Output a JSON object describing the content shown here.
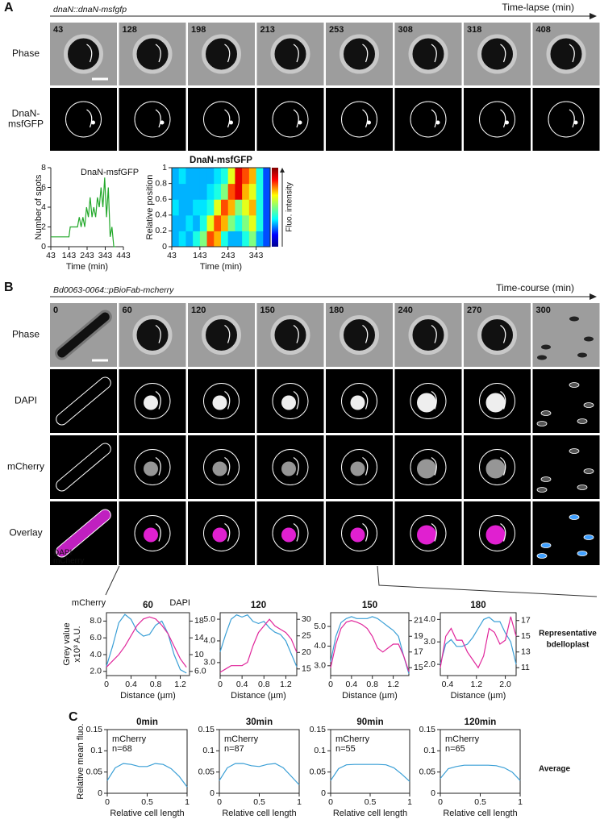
{
  "panel_a": {
    "label": "A",
    "strain": "dnaN::dnaN-msfgfp",
    "axis_label": "Time-lapse (min)",
    "times": [
      "43",
      "128",
      "198",
      "213",
      "253",
      "308",
      "318",
      "408"
    ],
    "rows": [
      [
        "Phase"
      ],
      [
        "DnaN-",
        "msfGFP"
      ]
    ]
  },
  "panel_b": {
    "label": "B",
    "strain": "Bd0063-0064::pBioFab-mcherry",
    "axis_label": "Time-course (min)",
    "times": [
      "0",
      "60",
      "120",
      "150",
      "180",
      "240",
      "270",
      "300"
    ],
    "rows": [
      [
        "Phase"
      ],
      [
        "DAPI"
      ],
      [
        "mCherry"
      ],
      [
        "Overlay"
      ]
    ],
    "overlay_legend": [
      "DAPI",
      "mCherry"
    ],
    "side_label": [
      "Representative",
      "bdelloplast"
    ]
  },
  "panel_c": {
    "label": "C",
    "side_label": "Average"
  },
  "chart_data": [
    {
      "type": "line",
      "xlabel": "Time (min)",
      "ylabel": "Number of spots",
      "x": [
        43,
        60,
        80,
        100,
        120,
        143,
        150,
        170,
        190,
        200,
        210,
        220,
        230,
        240,
        250,
        260,
        270,
        280,
        290,
        300,
        310,
        320,
        330,
        340,
        350,
        360,
        370,
        380,
        390,
        400
      ],
      "series": [
        {
          "name": "DnaN-msfGFP",
          "color": "#22a82a",
          "values": [
            1,
            1,
            1,
            1,
            1,
            1,
            2,
            2,
            2,
            3,
            2,
            3,
            2,
            4,
            3,
            5,
            3,
            4,
            3,
            5,
            4,
            6,
            4,
            7,
            3,
            6,
            1,
            2,
            0,
            0
          ]
        }
      ],
      "xlim": [
        43,
        443
      ],
      "xticks": [
        43,
        143,
        243,
        343,
        443
      ],
      "ylim": [
        0,
        8
      ],
      "yticks": [
        0,
        2,
        4,
        6,
        8
      ]
    },
    {
      "type": "heatmap",
      "title": "DnaN-msfGFP",
      "xlabel": "Time (min)",
      "ylabel": "Relative position",
      "colorbar_label": "Fluo. intensity",
      "xlim": [
        43,
        393
      ],
      "xticks": [
        43,
        143,
        243,
        343
      ],
      "ylim": [
        0,
        1
      ],
      "yticks": [
        0,
        0.2,
        0.4,
        0.6,
        0.8,
        1
      ],
      "zlim": [
        0,
        1
      ],
      "values": [
        [
          0.3,
          0.35,
          0.3,
          0.4,
          0.5,
          0.8,
          0.7,
          0.4,
          0.3,
          0.3,
          0.4,
          0.5,
          0.3,
          0.2
        ],
        [
          0.3,
          0.3,
          0.35,
          0.3,
          0.4,
          0.6,
          0.8,
          0.7,
          0.5,
          0.4,
          0.5,
          0.6,
          0.4,
          0.2
        ],
        [
          0.35,
          0.3,
          0.3,
          0.35,
          0.35,
          0.4,
          0.6,
          0.8,
          0.7,
          0.5,
          0.6,
          0.7,
          0.4,
          0.2
        ],
        [
          0.3,
          0.3,
          0.3,
          0.3,
          0.3,
          0.35,
          0.4,
          0.5,
          0.8,
          0.9,
          0.7,
          0.6,
          0.4,
          0.2
        ],
        [
          0.3,
          0.35,
          0.3,
          0.3,
          0.3,
          0.3,
          0.35,
          0.4,
          0.6,
          0.9,
          0.8,
          0.7,
          0.4,
          0.2
        ]
      ]
    },
    {
      "type": "line",
      "title": "60",
      "xlabel": "Distance (µm)",
      "ylabel": [
        "Grey value",
        "x10³ A.U."
      ],
      "x": [
        0,
        0.1,
        0.2,
        0.3,
        0.4,
        0.5,
        0.6,
        0.7,
        0.8,
        0.9,
        1.0,
        1.1,
        1.2,
        1.3
      ],
      "series": [
        {
          "name": "mCherry",
          "color": "#3a9fd6",
          "values": [
            2.6,
            5,
            7.8,
            8.8,
            8.2,
            6.8,
            6.2,
            6.4,
            7.5,
            8,
            6.5,
            4,
            2.2,
            1.8
          ]
        },
        {
          "name": "DAPI",
          "color": "#e0269b",
          "axis": "y2",
          "values": [
            7,
            8.5,
            10,
            12,
            14.5,
            17,
            18.5,
            19,
            18.5,
            17,
            15,
            12,
            9,
            7
          ]
        }
      ],
      "xlim": [
        0,
        1.35
      ],
      "xticks": [
        0,
        0.4,
        0.8,
        1.2
      ],
      "ylim": [
        1.5,
        9
      ],
      "yticks": [
        {
          "value": 2,
          "label": "2.0"
        },
        {
          "value": 4,
          "label": "4.0"
        },
        {
          "value": 6,
          "label": "6.0"
        },
        {
          "value": 8,
          "label": "8.0"
        }
      ],
      "y2lim": [
        5,
        20
      ],
      "y2ticks": [
        {
          "value": 6,
          "label": "6.0"
        },
        10,
        14,
        18
      ]
    },
    {
      "type": "line",
      "title": "120",
      "xlabel": "Distance (µm)",
      "x": [
        0,
        0.1,
        0.2,
        0.3,
        0.4,
        0.5,
        0.6,
        0.7,
        0.8,
        0.9,
        1.0,
        1.1,
        1.2,
        1.3,
        1.4
      ],
      "series": [
        {
          "color": "#3a9fd6",
          "values": [
            3.5,
            4.3,
            5.0,
            5.2,
            5.1,
            5.2,
            4.9,
            4.8,
            4.9,
            4.6,
            4.4,
            4.3,
            4.0,
            3.4,
            2.8
          ]
        },
        {
          "color": "#e0269b",
          "axis": "y2",
          "values": [
            14,
            15,
            16,
            16,
            16,
            17,
            22,
            26,
            28,
            30,
            28,
            27,
            26,
            24,
            20
          ]
        }
      ],
      "xlim": [
        0,
        1.4
      ],
      "xticks": [
        0,
        0.4,
        0.8,
        1.2
      ],
      "ylim": [
        2.4,
        5.3
      ],
      "yticks": [
        {
          "value": 3,
          "label": "3.0"
        },
        {
          "value": 4,
          "label": "4.0"
        },
        {
          "value": 5,
          "label": "5.0"
        }
      ],
      "y2lim": [
        13,
        32
      ],
      "y2ticks": [
        15,
        20,
        25,
        30
      ]
    },
    {
      "type": "line",
      "title": "150",
      "xlabel": "Distance (µm)",
      "x": [
        0,
        0.1,
        0.2,
        0.3,
        0.4,
        0.5,
        0.6,
        0.7,
        0.8,
        0.9,
        1.0,
        1.1,
        1.2,
        1.3,
        1.4,
        1.5
      ],
      "series": [
        {
          "color": "#3a9fd6",
          "values": [
            3.2,
            4.5,
            5.2,
            5.4,
            5.5,
            5.4,
            5.4,
            5.4,
            5.5,
            5.4,
            5.2,
            5.0,
            4.8,
            4.5,
            3.5,
            2.6
          ]
        },
        {
          "color": "#e0269b",
          "axis": "y2",
          "values": [
            15,
            18,
            20,
            20.8,
            21,
            20.8,
            20.5,
            20,
            19,
            17.5,
            17,
            17.5,
            18,
            18,
            16.5,
            14.5
          ]
        }
      ],
      "xlim": [
        0,
        1.5
      ],
      "xticks": [
        0,
        0.4,
        0.8,
        1.2
      ],
      "ylim": [
        2.5,
        5.7
      ],
      "yticks": [
        {
          "value": 3,
          "label": "3.0"
        },
        {
          "value": 4,
          "label": "4.0"
        },
        {
          "value": 5,
          "label": "5.0"
        }
      ],
      "y2lim": [
        14,
        22
      ],
      "y2ticks": [
        15,
        17,
        19,
        21
      ]
    },
    {
      "type": "line",
      "title": "180",
      "xlabel": "Distance (µm)",
      "x": [
        0.2,
        0.35,
        0.5,
        0.65,
        0.8,
        0.95,
        1.1,
        1.25,
        1.4,
        1.55,
        1.7,
        1.85,
        2.0,
        2.15,
        2.3
      ],
      "series": [
        {
          "color": "#3a9fd6",
          "values": [
            2.0,
            2.9,
            3.1,
            2.8,
            2.8,
            2.9,
            3.2,
            3.6,
            4.0,
            4.1,
            3.9,
            3.9,
            3.4,
            3.0,
            2.0
          ]
        },
        {
          "color": "#e0269b",
          "axis": "y2",
          "values": [
            11,
            15,
            16,
            14.5,
            14.5,
            13,
            12,
            11,
            12.5,
            16,
            15.5,
            14,
            14.5,
            17.5,
            15
          ]
        }
      ],
      "xlim": [
        0.2,
        2.3
      ],
      "xticks": [
        0.4,
        1.2,
        {
          "value": 2,
          "label": "2.0"
        }
      ],
      "ylim": [
        1.5,
        4.3
      ],
      "yticks": [
        {
          "value": 2,
          "label": "2.0"
        },
        {
          "value": 3,
          "label": "3.0"
        },
        {
          "value": 4,
          "label": "4.0"
        }
      ],
      "y2lim": [
        10,
        18
      ],
      "y2ticks": [
        11,
        13,
        15,
        17
      ]
    },
    {
      "type": "line",
      "title": "0min",
      "xlabel": "Relative cell length",
      "ylabel": "Relative mean fluo.",
      "annotation": "n=68",
      "x": [
        0,
        0.1,
        0.2,
        0.3,
        0.4,
        0.5,
        0.6,
        0.7,
        0.8,
        0.9,
        1
      ],
      "series": [
        {
          "name": "mCherry",
          "color": "#3a9fd6",
          "values": [
            0.03,
            0.06,
            0.07,
            0.068,
            0.063,
            0.063,
            0.07,
            0.068,
            0.058,
            0.04,
            0.015
          ]
        }
      ],
      "xlim": [
        0,
        1
      ],
      "xticks": [
        0,
        0.5,
        1
      ],
      "ylim": [
        0,
        0.15
      ],
      "yticks": [
        0,
        0.05,
        0.1,
        0.15
      ]
    },
    {
      "type": "line",
      "title": "30min",
      "xlabel": "Relative cell length",
      "annotation": "n=87",
      "x": [
        0,
        0.1,
        0.2,
        0.3,
        0.4,
        0.5,
        0.6,
        0.7,
        0.8,
        0.9,
        1
      ],
      "series": [
        {
          "name": "mCherry",
          "color": "#3a9fd6",
          "values": [
            0.03,
            0.06,
            0.07,
            0.07,
            0.065,
            0.063,
            0.068,
            0.07,
            0.06,
            0.04,
            0.02
          ]
        }
      ],
      "xlim": [
        0,
        1
      ],
      "xticks": [
        0,
        0.5,
        1
      ],
      "ylim": [
        0,
        0.15
      ],
      "yticks": [
        0,
        0.05,
        0.1,
        0.15
      ]
    },
    {
      "type": "line",
      "title": "90min",
      "xlabel": "Relative cell length",
      "annotation": "n=55",
      "x": [
        0,
        0.1,
        0.2,
        0.3,
        0.4,
        0.5,
        0.6,
        0.7,
        0.8,
        0.9,
        1
      ],
      "series": [
        {
          "name": "mCherry",
          "color": "#3a9fd6",
          "values": [
            0.03,
            0.058,
            0.067,
            0.068,
            0.068,
            0.068,
            0.068,
            0.067,
            0.06,
            0.045,
            0.028
          ]
        }
      ],
      "xlim": [
        0,
        1
      ],
      "xticks": [
        0,
        0.5,
        1
      ],
      "ylim": [
        0,
        0.15
      ],
      "yticks": [
        0,
        0.05,
        0.1,
        0.15
      ]
    },
    {
      "type": "line",
      "title": "120min",
      "xlabel": "Relative cell length",
      "annotation": "n=65",
      "x": [
        0,
        0.1,
        0.2,
        0.3,
        0.4,
        0.5,
        0.6,
        0.7,
        0.8,
        0.9,
        1
      ],
      "series": [
        {
          "name": "mCherry",
          "color": "#3a9fd6",
          "values": [
            0.035,
            0.058,
            0.063,
            0.066,
            0.066,
            0.066,
            0.066,
            0.065,
            0.06,
            0.05,
            0.03
          ]
        }
      ],
      "xlim": [
        0,
        1
      ],
      "xticks": [
        0,
        0.5,
        1
      ],
      "ylim": [
        0,
        0.15
      ],
      "yticks": [
        0,
        0.05,
        0.1,
        0.15
      ]
    }
  ]
}
